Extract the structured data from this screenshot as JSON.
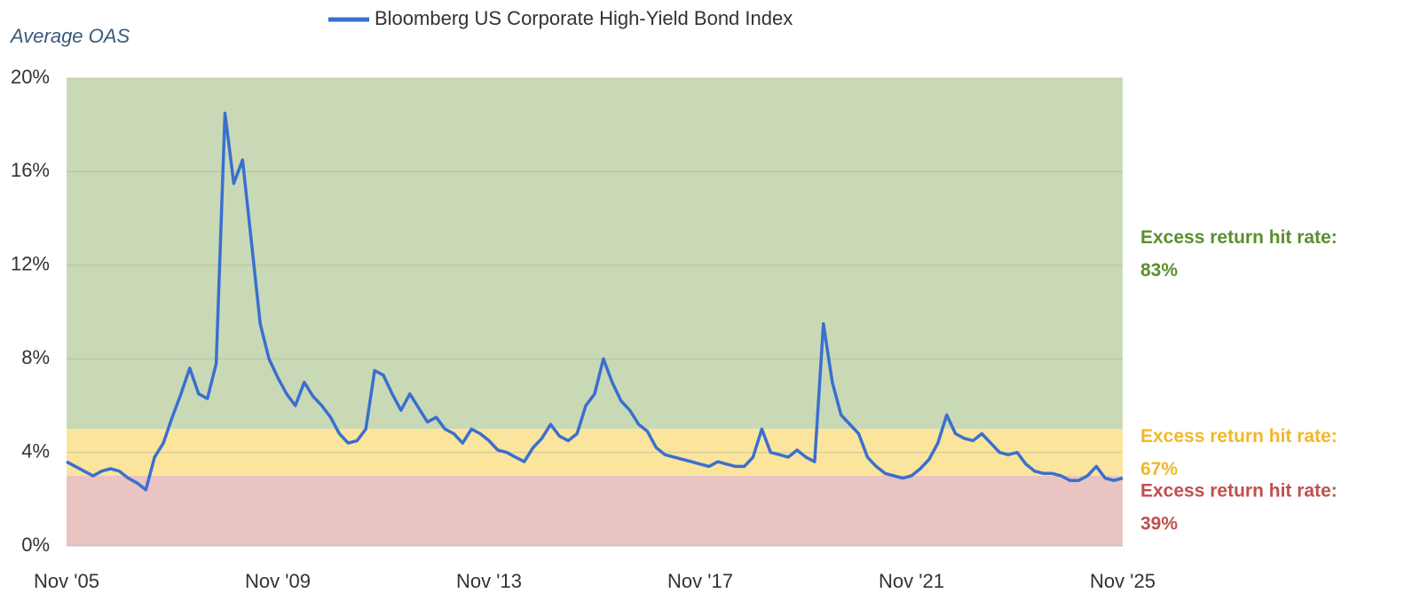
{
  "chart_data": {
    "type": "line",
    "axis_title": "Average OAS",
    "categories": [
      "Nov '05",
      null,
      null,
      null,
      null,
      null,
      null,
      null,
      null,
      null,
      null,
      null,
      null,
      null,
      null,
      null,
      null,
      null,
      null,
      null,
      null,
      null,
      null,
      null,
      "Nov '09",
      null,
      null,
      null,
      null,
      null,
      null,
      null,
      null,
      null,
      null,
      null,
      null,
      null,
      null,
      null,
      null,
      null,
      null,
      null,
      null,
      null,
      null,
      null,
      "Nov '13",
      null,
      null,
      null,
      null,
      null,
      null,
      null,
      null,
      null,
      null,
      null,
      null,
      null,
      null,
      null,
      null,
      null,
      null,
      null,
      null,
      null,
      null,
      null,
      "Nov '17",
      null,
      null,
      null,
      null,
      null,
      null,
      null,
      null,
      null,
      null,
      null,
      null,
      null,
      null,
      null,
      null,
      null,
      null,
      null,
      null,
      null,
      null,
      null,
      "Nov '21",
      null,
      null,
      null,
      null,
      null,
      null,
      null,
      null,
      null,
      null,
      null,
      null,
      null,
      null,
      null,
      null,
      null,
      null,
      null,
      null,
      null,
      null,
      null,
      "Nov '25"
    ],
    "series": [
      {
        "name": "Bloomberg US Corporate High-Yield Bond Index",
        "color": "#3a6fd0",
        "values": [
          3.6,
          3.4,
          3.2,
          3.0,
          3.2,
          3.3,
          3.2,
          2.9,
          2.7,
          2.4,
          3.8,
          4.4,
          5.5,
          6.5,
          7.6,
          6.5,
          6.3,
          7.8,
          18.5,
          15.5,
          16.5,
          13,
          9.5,
          8.0,
          7.2,
          6.5,
          6.0,
          7.0,
          6.4,
          6.0,
          5.5,
          4.8,
          4.4,
          4.5,
          5.0,
          7.5,
          7.3,
          6.5,
          5.8,
          6.5,
          5.9,
          5.3,
          5.5,
          5.0,
          4.8,
          4.4,
          5.0,
          4.8,
          4.5,
          4.1,
          4.0,
          3.8,
          3.6,
          4.2,
          4.6,
          5.2,
          4.7,
          4.5,
          4.8,
          6.0,
          6.5,
          8.0,
          7.0,
          6.2,
          5.8,
          5.2,
          4.9,
          4.2,
          3.9,
          3.8,
          3.7,
          3.6,
          3.5,
          3.4,
          3.6,
          3.5,
          3.4,
          3.4,
          3.8,
          5.0,
          4.0,
          3.9,
          3.8,
          4.1,
          3.8,
          3.6,
          9.5,
          7.0,
          5.6,
          5.2,
          4.8,
          3.8,
          3.4,
          3.1,
          3.0,
          2.9,
          3.0,
          3.3,
          3.7,
          4.4,
          5.6,
          4.8,
          4.6,
          4.5,
          4.8,
          4.4,
          4.0,
          3.9,
          4.0,
          3.5,
          3.2,
          3.1,
          3.1,
          3.0,
          2.8,
          2.8,
          3.0,
          3.4,
          2.9,
          2.8,
          2.9
        ]
      }
    ],
    "ylim": [
      0,
      20
    ],
    "yticks": [
      {
        "value": 0,
        "label": "0%"
      },
      {
        "value": 4,
        "label": "4%"
      },
      {
        "value": 8,
        "label": "8%"
      },
      {
        "value": 12,
        "label": "12%"
      },
      {
        "value": 16,
        "label": "16%"
      },
      {
        "value": 20,
        "label": "20%"
      }
    ],
    "grid": true,
    "bands": [
      {
        "from": 5,
        "to": 20,
        "color": "#c9d9b6",
        "label_color": "#5b8f2c",
        "label": "Excess return hit rate:",
        "rate": "83%"
      },
      {
        "from": 3,
        "to": 5,
        "color": "#fbe49c",
        "label_color": "#f2b72a",
        "label": "Excess return hit rate:",
        "rate": "67%"
      },
      {
        "from": 0,
        "to": 3,
        "color": "#e9c4c2",
        "label_color": "#c0504d",
        "label": "Excess return hit rate:",
        "rate": "39%"
      }
    ]
  }
}
